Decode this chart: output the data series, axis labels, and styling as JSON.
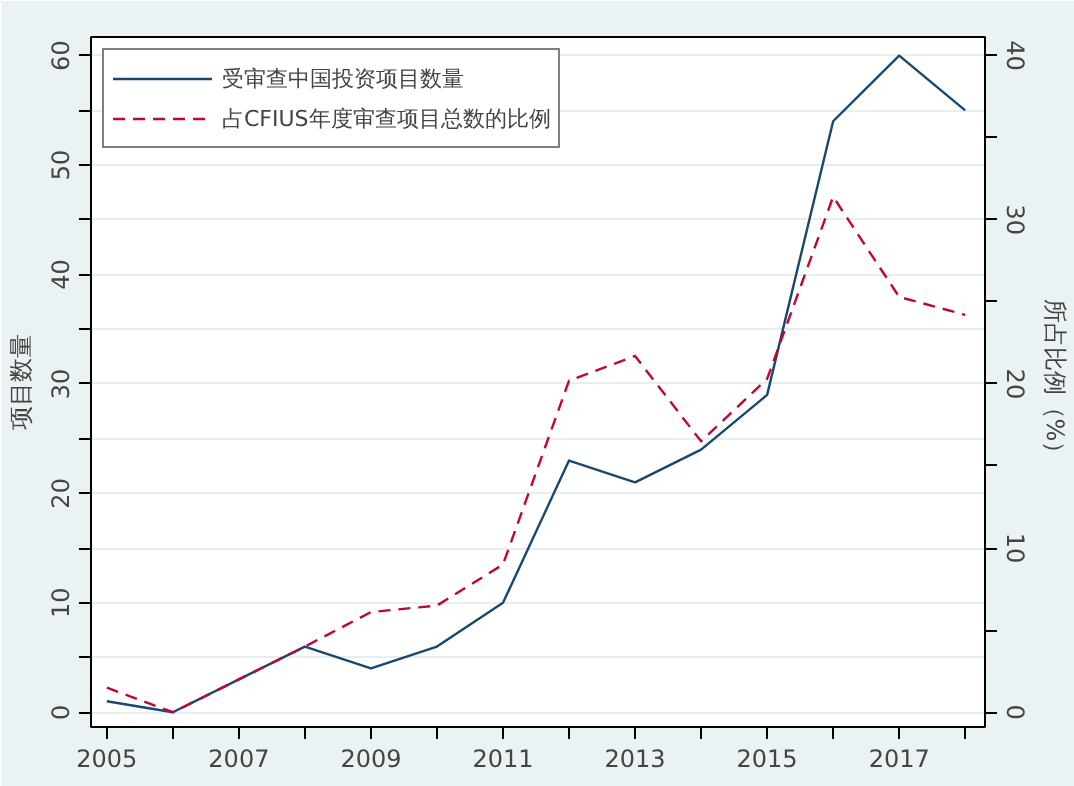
{
  "chart_data": {
    "type": "line",
    "ylabel": "项目数量",
    "y2label": "所占比例（%）",
    "x": [
      2005,
      2006,
      2007,
      2008,
      2009,
      2010,
      2011,
      2012,
      2013,
      2014,
      2015,
      2016,
      2017,
      2018
    ],
    "series": [
      {
        "name": "受审查中国投资项目数量",
        "color": "#1a476f",
        "line_style": "solid",
        "values": [
          1,
          0,
          3,
          6,
          4,
          6,
          10,
          23,
          21,
          24,
          29,
          54,
          60,
          55
        ]
      },
      {
        "name": "占CFIUS年度审查项目总数的比例",
        "color": "#c10534",
        "line_style": "dashed",
        "axis": "y2",
        "values": [
          1.5,
          0,
          2,
          4,
          6.1,
          6.5,
          9,
          20.2,
          21.7,
          16.5,
          20.3,
          31.4,
          25.3,
          24.2
        ]
      }
    ],
    "xlim": [
      2004.76,
      2018.3
    ],
    "xticks": [
      2005,
      {
        "value": 2006,
        "label": null
      },
      2007,
      {
        "value": 2008,
        "label": null
      },
      2009,
      {
        "value": 2010,
        "label": null
      },
      2011,
      {
        "value": 2012,
        "label": null
      },
      2013,
      {
        "value": 2014,
        "label": null
      },
      2015,
      {
        "value": 2016,
        "label": null
      },
      2017,
      {
        "value": 2018,
        "label": null
      }
    ],
    "ylim": [
      -1.35,
      61.7
    ],
    "yticks": [
      0,
      {
        "value": 5,
        "label": null
      },
      10,
      {
        "value": 15,
        "label": null
      },
      20,
      {
        "value": 25,
        "label": null
      },
      30,
      {
        "value": 35,
        "label": null
      },
      40,
      {
        "value": 45,
        "label": null
      },
      50,
      {
        "value": 55,
        "label": null
      },
      60
    ],
    "y2lim": [
      -0.9,
      41.13
    ],
    "y2ticks": [
      0,
      {
        "value": 5,
        "label": null
      },
      10,
      {
        "value": 15,
        "label": null
      },
      20,
      {
        "value": 25,
        "label": null
      },
      30,
      {
        "value": 35,
        "label": null
      },
      40
    ],
    "grid": "y",
    "legend": "top left",
    "marker": "none"
  }
}
